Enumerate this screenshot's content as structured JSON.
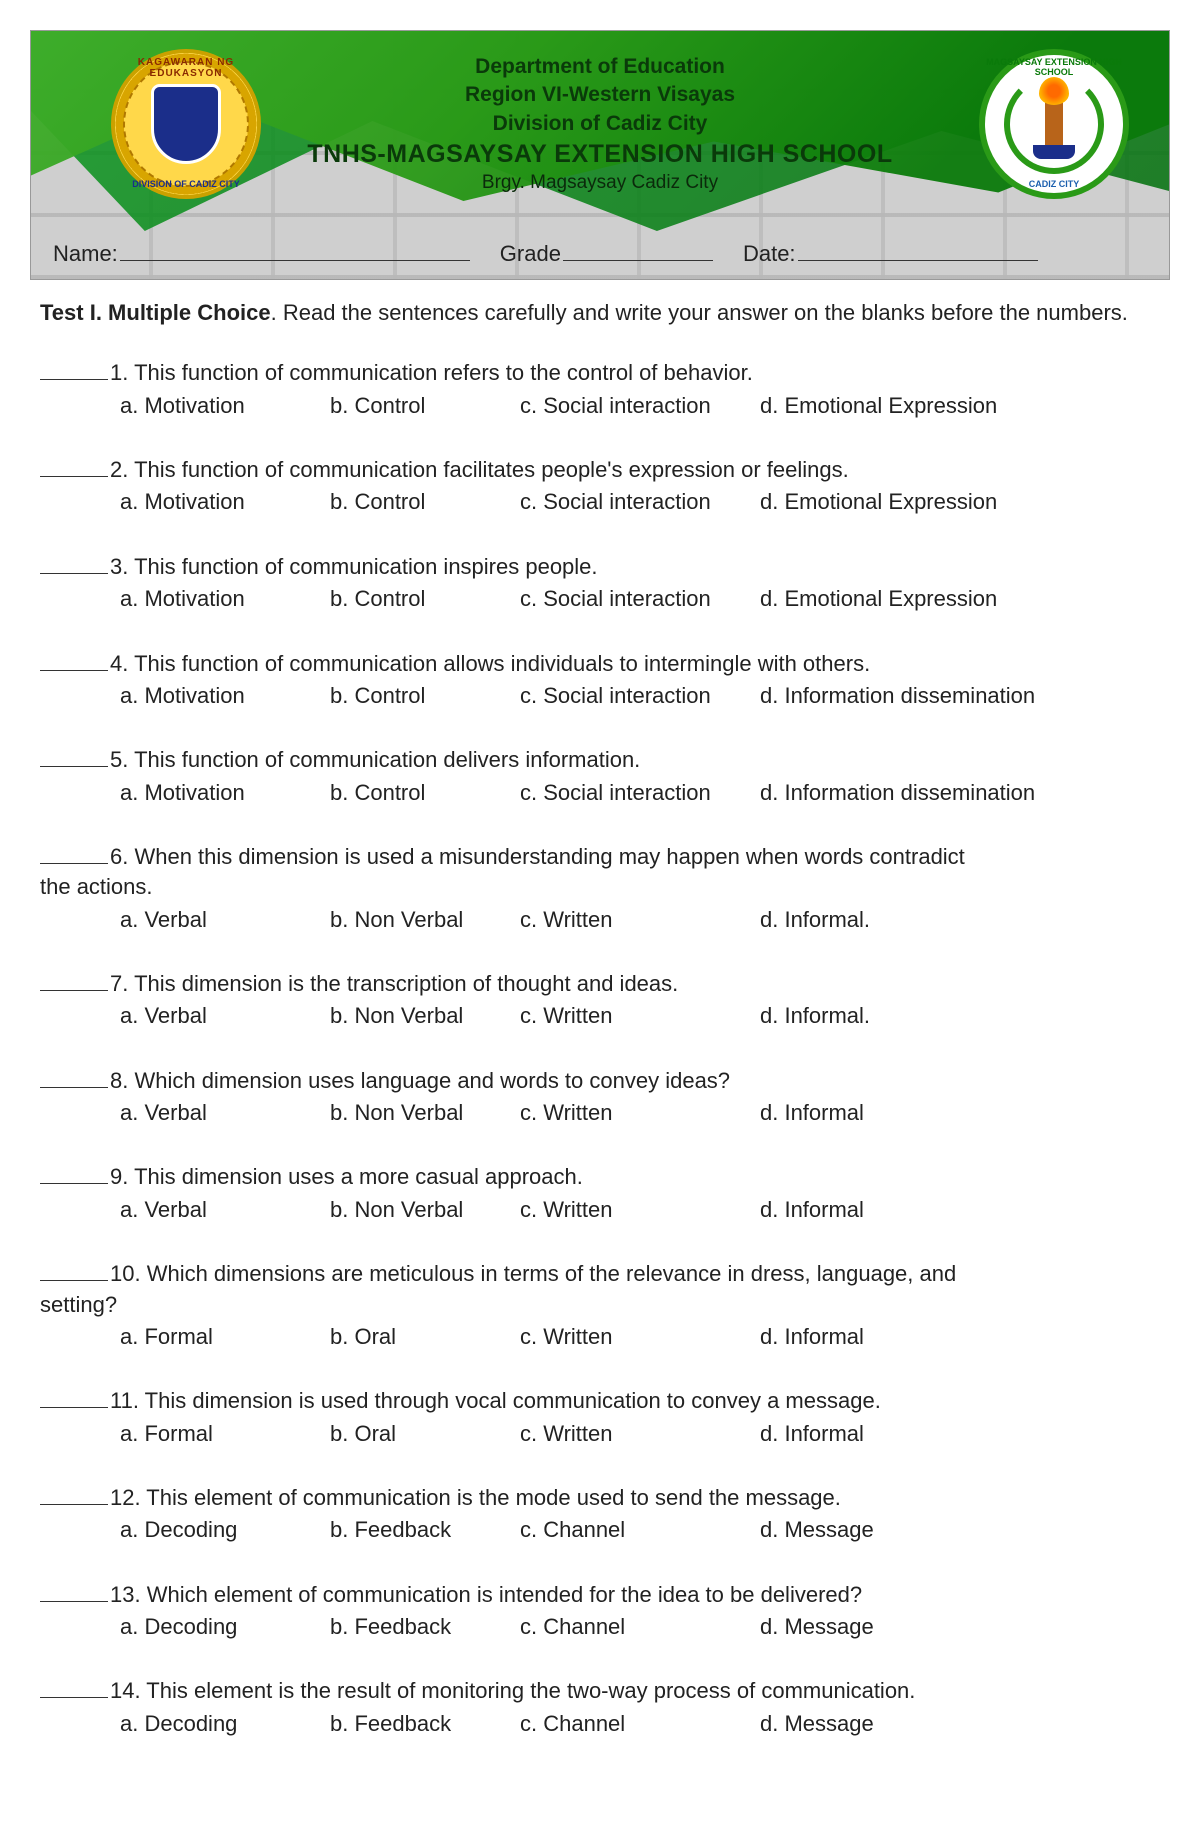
{
  "colors": {
    "green_dark": "#0a7a0a",
    "green_mid": "#2a9a17",
    "brick_bg": "#cfcfcf",
    "header_text": "#0a3a0a",
    "seal_gold": "#ffd84a",
    "seal_blue": "#1b2e8a",
    "body_text": "#222222"
  },
  "header": {
    "dept": "Department of Education",
    "region": "Region VI-Western Visayas",
    "division": "Division of Cadiz City",
    "school": "TNHS-MAGSAYSAY EXTENSION HIGH SCHOOL",
    "address": "Brgy. Magsaysay Cadiz City",
    "seal_left_top": "KAGAWARAN NG EDUKASYON",
    "seal_left_bottom": "DIVISION OF CADIZ CITY",
    "seal_right_top": "MAGSAYSAY EXTENSION HIGH SCHOOL",
    "seal_right_bottom": "CADIZ CITY"
  },
  "info": {
    "name_label": "Name:",
    "grade_label": "Grade",
    "date_label": "Date:"
  },
  "test": {
    "title": "Test I. Multiple Choice",
    "instructions": ". Read the sentences carefully and write your answer on the blanks before the numbers."
  },
  "option_cols": {
    "a": 210,
    "b": 190,
    "c": 240
  },
  "questions": [
    {
      "n": "1.",
      "stem": "This function of communication refers to the control of behavior.",
      "opts": [
        "a. Motivation",
        "b. Control",
        "c. Social interaction",
        "d. Emotional Expression"
      ]
    },
    {
      "n": "2.",
      "stem": " This function of communication facilitates people's expression or feelings.",
      "opts": [
        "a. Motivation",
        "b. Control",
        "c. Social interaction",
        "d. Emotional Expression"
      ]
    },
    {
      "n": "3.",
      "stem": "This function of communication inspires people.",
      "opts": [
        "a. Motivation",
        "b. Control",
        "c. Social interaction",
        "d. Emotional Expression"
      ]
    },
    {
      "n": "4.",
      "stem": "This function of communication allows individuals to intermingle with others.",
      "opts": [
        "a. Motivation",
        "b. Control",
        "c. Social interaction",
        "d. Information dissemination"
      ]
    },
    {
      "n": "5.",
      "stem": "This function of communication delivers information.",
      "opts": [
        "a. Motivation",
        "b. Control",
        "c. Social interaction",
        "d. Information dissemination"
      ]
    },
    {
      "n": "6.",
      "stem": "When this dimension is used a misunderstanding may happen when words contradict",
      "stem_wrap": "the actions.",
      "opts": [
        "a. Verbal",
        "b. Non Verbal",
        "c. Written",
        "d. Informal."
      ]
    },
    {
      "n": "7.",
      "stem": " This dimension is the transcription of thought and ideas.",
      "opts": [
        "a. Verbal",
        "b. Non Verbal",
        "c. Written",
        "d. Informal."
      ]
    },
    {
      "n": "8.",
      "stem": "Which dimension uses language and words to convey ideas?",
      "opts": [
        "a. Verbal",
        "b. Non Verbal",
        "c. Written",
        "d. Informal"
      ]
    },
    {
      "n": "9.",
      "stem": "This dimension uses a more casual approach.",
      "opts": [
        "a. Verbal",
        "b. Non Verbal",
        "c. Written",
        "d. Informal"
      ]
    },
    {
      "n": "10.",
      "stem": "Which dimensions are meticulous in terms of the relevance in dress, language, and",
      "stem_wrap": "setting?",
      "opts": [
        "a. Formal",
        "b. Oral",
        "c. Written",
        "d. Informal"
      ]
    },
    {
      "n": "11.",
      "stem": "This dimension is used through vocal communication to convey a message.",
      "opts": [
        "a. Formal",
        "b. Oral",
        "c. Written",
        "d. Informal"
      ]
    },
    {
      "n": "12.",
      "stem": "This element of communication is the mode used to send the message.",
      "opts": [
        "a. Decoding",
        "b. Feedback",
        "c. Channel",
        "d. Message"
      ]
    },
    {
      "n": "13.",
      "stem": "Which element of communication is intended for the idea to be delivered?",
      "opts": [
        "a. Decoding",
        "b. Feedback",
        "c. Channel",
        "d. Message"
      ]
    },
    {
      "n": "14.",
      "stem": "This element is the result of monitoring the two-way process of communication.",
      "opts": [
        "a. Decoding",
        "b. Feedback",
        "c. Channel",
        "d. Message"
      ]
    }
  ]
}
